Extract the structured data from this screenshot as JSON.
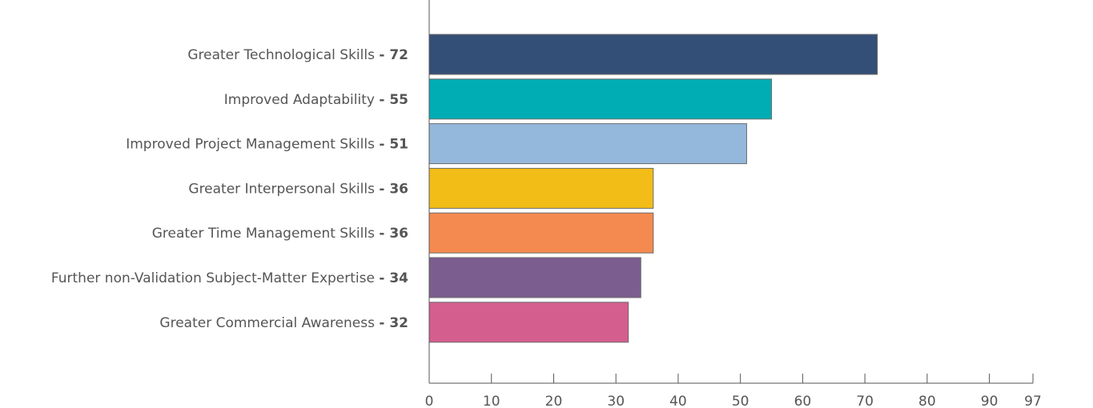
{
  "chart_data": {
    "type": "bar",
    "orientation": "horizontal",
    "categories": [
      "Greater Technological Skills",
      "Improved Adaptability",
      "Improved Project Management Skills",
      "Greater Interpersonal Skills",
      "Greater Time Management Skills",
      "Further non-Validation Subject-Matter Expertise",
      "Greater Commercial Awareness"
    ],
    "values": [
      72,
      55,
      51,
      36,
      36,
      34,
      32
    ],
    "value_labels": [
      "- 72",
      "- 55",
      "- 51",
      "- 36",
      "- 36",
      "- 34",
      "- 32"
    ],
    "colors": [
      "#344f77",
      "#00adb5",
      "#94b8dc",
      "#f3bd17",
      "#f58a50",
      "#7c5d8f",
      "#d45e8e"
    ],
    "xlim": [
      0,
      97
    ],
    "xticks": [
      0,
      10,
      20,
      30,
      40,
      50,
      60,
      70,
      80,
      90,
      97
    ],
    "title": "",
    "xlabel": "",
    "ylabel": "",
    "grid": false,
    "legend": "none"
  }
}
